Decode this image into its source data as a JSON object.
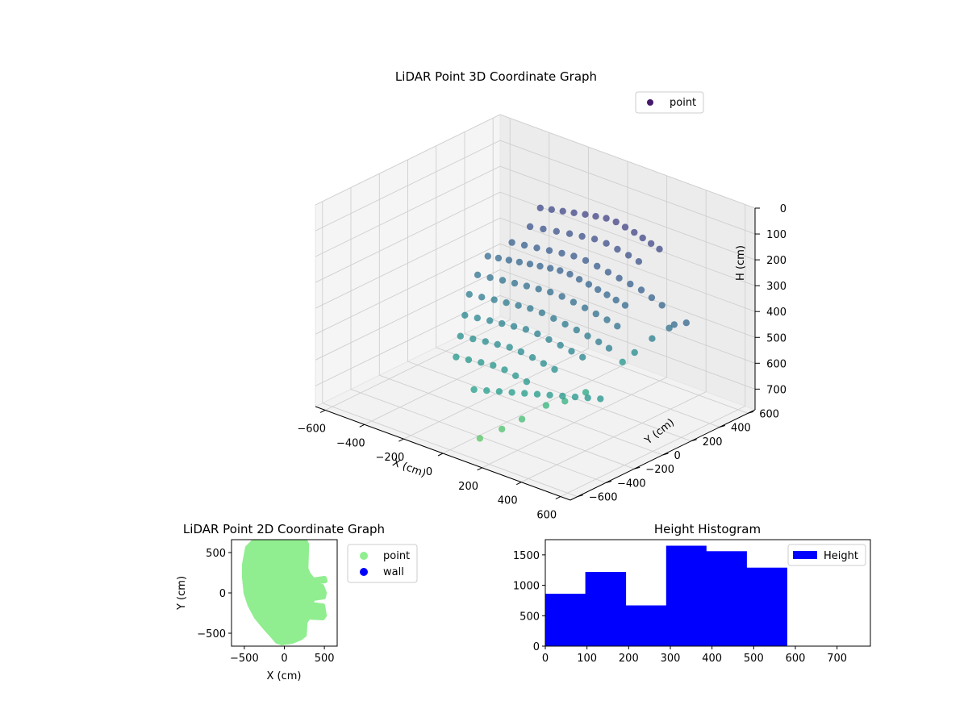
{
  "chart_data": [
    {
      "type": "scatter",
      "dims": 3,
      "title": "LiDAR Point 3D Coordinate Graph",
      "xlabel": "X (cm)",
      "ylabel": "Y (cm)",
      "zlabel": "H (cm)",
      "xlim": [
        -650,
        650
      ],
      "ylim": [
        -650,
        650
      ],
      "zlim": [
        0,
        780
      ],
      "z_inverted": true,
      "xticks": [
        -600,
        -400,
        -200,
        0,
        200,
        400,
        600
      ],
      "yticks": [
        -600,
        -400,
        -200,
        0,
        200,
        400,
        600
      ],
      "zticks": [
        0,
        100,
        200,
        300,
        400,
        500,
        600,
        700
      ],
      "colormap": "viridis",
      "grid": true,
      "legend": {
        "position": "top-right",
        "entries": [
          {
            "label": "point",
            "color": "#46196a"
          }
        ]
      },
      "series": [
        {
          "name": "point",
          "x": [
            -300,
            -250,
            -200,
            -150,
            -100,
            -50,
            0,
            50,
            100,
            150,
            200,
            250,
            300,
            -280,
            -220,
            -160,
            -100,
            -40,
            20,
            80,
            140,
            200,
            260,
            -300,
            -240,
            -180,
            -120,
            -60,
            0,
            60,
            120,
            180,
            240,
            300,
            360,
            420,
            480,
            -350,
            -300,
            -250,
            -200,
            -150,
            -100,
            -50,
            0,
            50,
            100,
            150,
            200,
            250,
            300,
            350,
            -330,
            -270,
            -210,
            -150,
            -90,
            -30,
            30,
            90,
            150,
            210,
            270,
            330,
            390,
            -300,
            -240,
            -180,
            -120,
            -60,
            0,
            60,
            120,
            180,
            240,
            300,
            360,
            420,
            -250,
            -190,
            -130,
            -70,
            -10,
            50,
            110,
            170,
            230,
            290,
            350,
            -200,
            -140,
            -80,
            -20,
            40,
            100,
            160,
            220,
            280,
            -150,
            -90,
            -30,
            30,
            90,
            150,
            210,
            50,
            100,
            150,
            200,
            250,
            300,
            350,
            400,
            450,
            500,
            550,
            600,
            640,
            560,
            480,
            420,
            380,
            330,
            260,
            200,
            150,
            120,
            80
          ],
          "y": [
            450,
            460,
            470,
            480,
            490,
            495,
            500,
            500,
            495,
            490,
            480,
            470,
            460,
            350,
            360,
            370,
            380,
            385,
            390,
            390,
            385,
            380,
            370,
            250,
            255,
            260,
            265,
            270,
            272,
            272,
            270,
            265,
            260,
            255,
            250,
            240,
            230,
            150,
            155,
            160,
            165,
            170,
            172,
            175,
            175,
            175,
            172,
            170,
            165,
            160,
            155,
            150,
            50,
            55,
            60,
            62,
            64,
            65,
            65,
            64,
            62,
            60,
            55,
            50,
            40,
            -50,
            -45,
            -40,
            -38,
            -36,
            -35,
            -35,
            -36,
            -38,
            -40,
            -45,
            -50,
            -60,
            -150,
            -145,
            -140,
            -138,
            -136,
            -135,
            -136,
            -138,
            -140,
            -145,
            -150,
            -250,
            -245,
            -240,
            -238,
            -236,
            -238,
            -240,
            -245,
            -250,
            -350,
            -345,
            -340,
            -338,
            -340,
            -345,
            -350,
            -500,
            -480,
            -460,
            -440,
            -420,
            -400,
            -380,
            -360,
            -340,
            -320,
            -300,
            150,
            180,
            170,
            160,
            120,
            90,
            -100,
            -150,
            -200,
            -300,
            -400,
            -500
          ],
          "h": [
            210,
            205,
            200,
            195,
            190,
            185,
            180,
            180,
            185,
            190,
            195,
            200,
            205,
            250,
            245,
            240,
            235,
            230,
            225,
            225,
            230,
            235,
            240,
            290,
            285,
            280,
            275,
            270,
            265,
            265,
            270,
            275,
            280,
            285,
            290,
            300,
            310,
            330,
            325,
            320,
            315,
            310,
            305,
            300,
            295,
            295,
            300,
            305,
            310,
            315,
            320,
            325,
            370,
            365,
            360,
            355,
            350,
            345,
            340,
            340,
            345,
            350,
            355,
            360,
            365,
            410,
            405,
            400,
            395,
            390,
            385,
            385,
            390,
            395,
            400,
            405,
            410,
            415,
            450,
            445,
            440,
            435,
            430,
            425,
            425,
            430,
            435,
            440,
            445,
            490,
            485,
            480,
            475,
            470,
            470,
            475,
            480,
            485,
            530,
            525,
            520,
            515,
            515,
            520,
            525,
            560,
            555,
            550,
            545,
            540,
            535,
            530,
            525,
            520,
            515,
            510,
            330,
            320,
            360,
            420,
            480,
            520,
            600,
            640,
            660,
            700,
            720,
            740
          ]
        }
      ]
    },
    {
      "type": "scatter",
      "dims": 2,
      "title": "LiDAR Point 2D Coordinate Graph",
      "xlabel": "X (cm)",
      "ylabel": "Y (cm)",
      "xlim": [
        -660,
        660
      ],
      "ylim": [
        -660,
        660
      ],
      "xticks": [
        -500,
        0,
        500
      ],
      "yticks": [
        -500,
        0,
        500
      ],
      "legend": {
        "position": "outside-right",
        "entries": [
          {
            "label": "point",
            "color": "#90ee90"
          },
          {
            "label": "wall",
            "color": "#0000ff"
          }
        ]
      },
      "series": [
        {
          "name": "point",
          "color": "#90ee90",
          "outline": [
            [
              -460,
              560
            ],
            [
              -380,
              640
            ],
            [
              -200,
              680
            ],
            [
              240,
              680
            ],
            [
              280,
              600
            ],
            [
              270,
              300
            ],
            [
              300,
              230
            ],
            [
              360,
              160
            ],
            [
              500,
              180
            ],
            [
              510,
              150
            ],
            [
              360,
              130
            ],
            [
              340,
              90
            ],
            [
              470,
              80
            ],
            [
              500,
              0
            ],
            [
              490,
              -50
            ],
            [
              360,
              -70
            ],
            [
              320,
              -140
            ],
            [
              480,
              -160
            ],
            [
              500,
              -280
            ],
            [
              480,
              -310
            ],
            [
              300,
              -300
            ],
            [
              260,
              -360
            ],
            [
              250,
              -520
            ],
            [
              200,
              -560
            ],
            [
              100,
              -600
            ],
            [
              -30,
              -620
            ],
            [
              -90,
              -600
            ],
            [
              -150,
              -530
            ],
            [
              -250,
              -420
            ],
            [
              -350,
              -300
            ],
            [
              -430,
              -150
            ],
            [
              -480,
              0
            ],
            [
              -500,
              200
            ],
            [
              -500,
              350
            ]
          ]
        },
        {
          "name": "wall",
          "color": "#0000ff",
          "x": [],
          "y": []
        }
      ]
    },
    {
      "type": "bar",
      "title": "Height Histogram",
      "xlim": [
        0,
        780
      ],
      "ylim": [
        0,
        1750
      ],
      "xticks": [
        0,
        100,
        200,
        300,
        400,
        500,
        600,
        700
      ],
      "yticks": [
        0,
        500,
        1000,
        1500
      ],
      "color": "#0000ff",
      "legend": {
        "position": "top-right",
        "entries": [
          {
            "label": "Height",
            "color": "#0000ff"
          }
        ]
      },
      "bins": [
        {
          "x0": 0,
          "x1": 96,
          "count": 860
        },
        {
          "x0": 96,
          "x1": 193,
          "count": 1220
        },
        {
          "x0": 193,
          "x1": 290,
          "count": 670
        },
        {
          "x0": 290,
          "x1": 386,
          "count": 1650
        },
        {
          "x0": 386,
          "x1": 483,
          "count": 1560
        },
        {
          "x0": 483,
          "x1": 580,
          "count": 1290
        }
      ]
    }
  ]
}
